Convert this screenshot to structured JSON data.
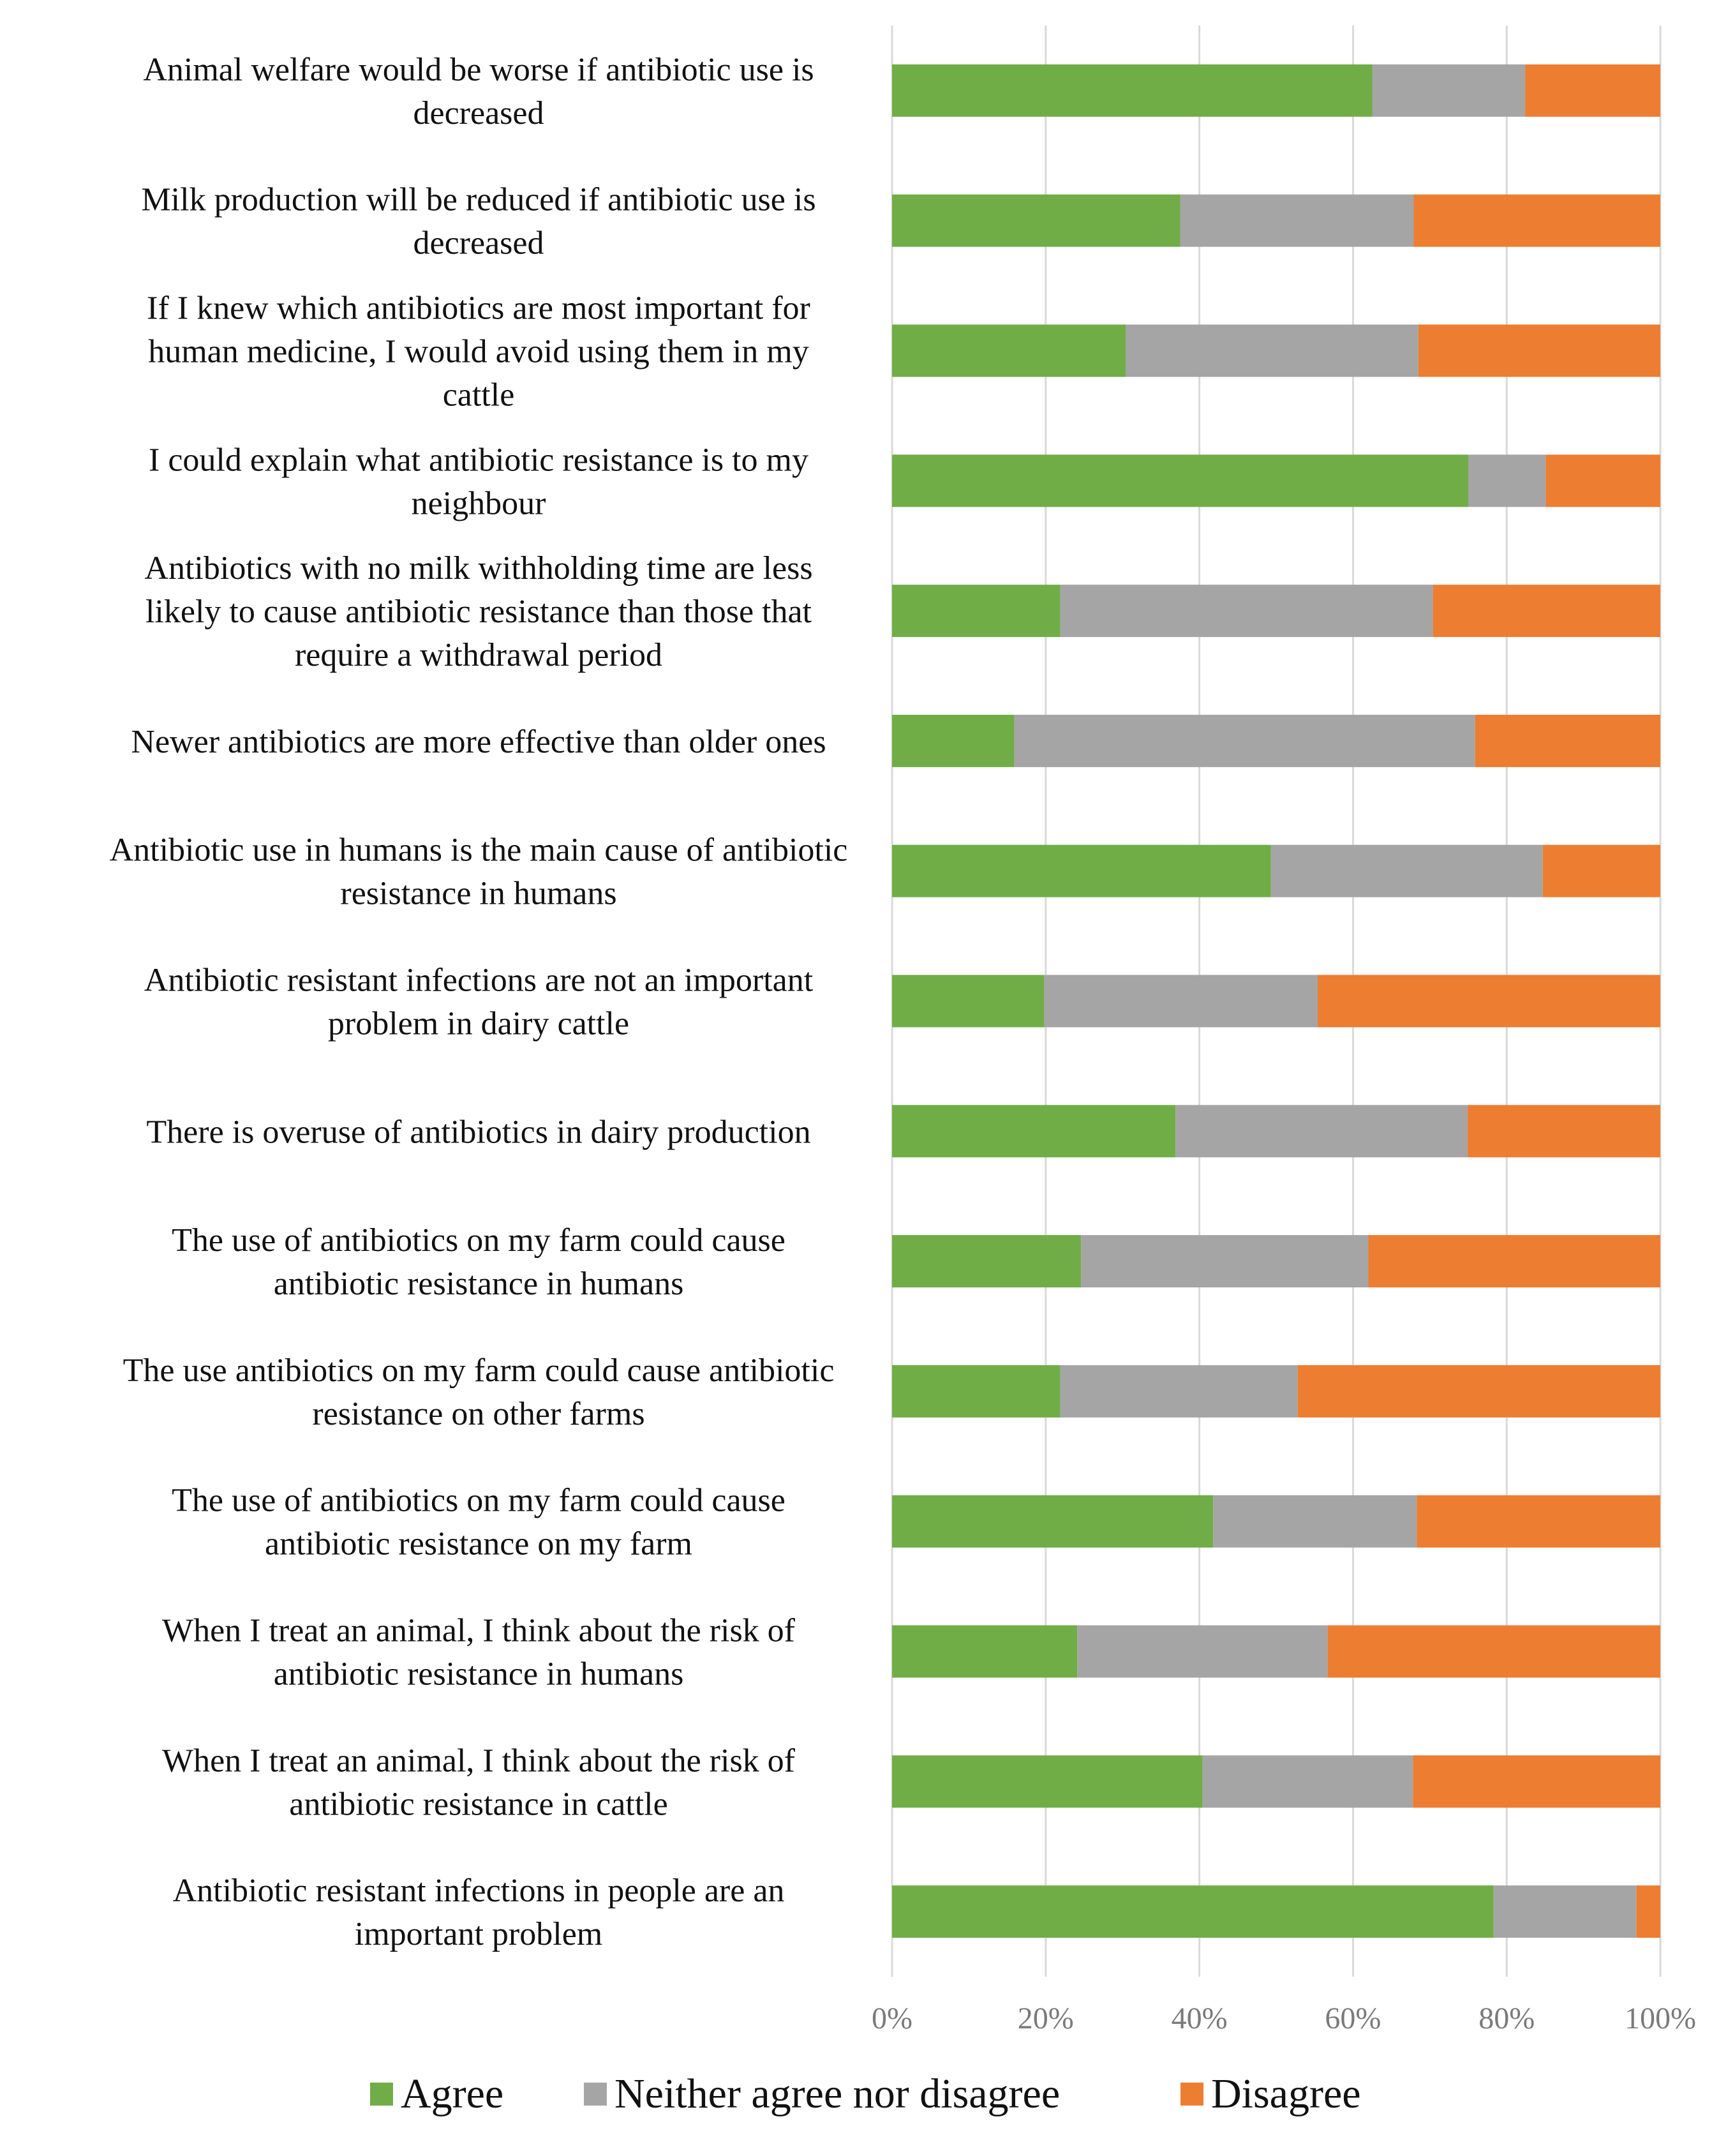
{
  "chart_data": {
    "type": "bar",
    "orientation": "horizontal",
    "stacked": "percent",
    "title": "",
    "xlabel": "",
    "ylabel": "",
    "xlim": [
      0,
      100
    ],
    "grid": true,
    "legend_position": "bottom",
    "x_ticks": [
      "0%",
      "20%",
      "40%",
      "60%",
      "80%",
      "100%"
    ],
    "colors": {
      "Agree": "#70ad47",
      "Neither agree nor disagree": "#a5a5a5",
      "Disagree": "#ed7d31"
    },
    "categories": [
      [
        "Animal welfare would be worse if antibiotic use is",
        "decreased"
      ],
      [
        "Milk production will be reduced if antibiotic use is",
        "decreased"
      ],
      [
        "If I knew which antibiotics are most important for",
        "human medicine, I would avoid using them in my",
        "cattle"
      ],
      [
        "I could explain what antibiotic resistance is to my",
        "neighbour"
      ],
      [
        "Antibiotics with no milk withholding time are less",
        "likely to cause antibiotic resistance than those that",
        "require a withdrawal period"
      ],
      [
        "Newer antibiotics are more effective than older ones"
      ],
      [
        "Antibiotic use in humans is the main cause of antibiotic",
        "resistance in humans"
      ],
      [
        "Antibiotic resistant infections are not an important",
        "problem in dairy cattle"
      ],
      [
        "There is overuse of antibiotics in dairy production"
      ],
      [
        "The use of antibiotics on my farm could cause",
        "antibiotic resistance in humans"
      ],
      [
        "The use antibiotics on my farm could cause antibiotic",
        "resistance on other farms"
      ],
      [
        "The use of antibiotics on my farm could cause",
        "antibiotic resistance on my farm"
      ],
      [
        "When I treat an animal, I think about the risk of",
        "antibiotic resistance in humans"
      ],
      [
        "When I treat an animal, I think about the risk of",
        "antibiotic resistance in cattle"
      ],
      [
        "Antibiotic resistant infections in people are an",
        "important problem"
      ]
    ],
    "series": [
      {
        "name": "Agree",
        "values": [
          62.5,
          37.5,
          30.4,
          75,
          21.9,
          15.9,
          49.3,
          19.8,
          36.9,
          24.6,
          21.9,
          41.8,
          24.1,
          40.4,
          78.3
        ]
      },
      {
        "name": "Neither agree nor disagree",
        "values": [
          19.9,
          30.4,
          38.1,
          10.1,
          48.5,
          60,
          35.4,
          35.6,
          38,
          37.4,
          30.9,
          26.5,
          32.6,
          27.4,
          18.6
        ]
      },
      {
        "name": "Disagree",
        "values": [
          17.6,
          32.1,
          31.5,
          14.9,
          29.6,
          24.1,
          15.3,
          44.6,
          25.1,
          38,
          47.2,
          31.7,
          43.3,
          32.2,
          3.1
        ]
      }
    ]
  }
}
